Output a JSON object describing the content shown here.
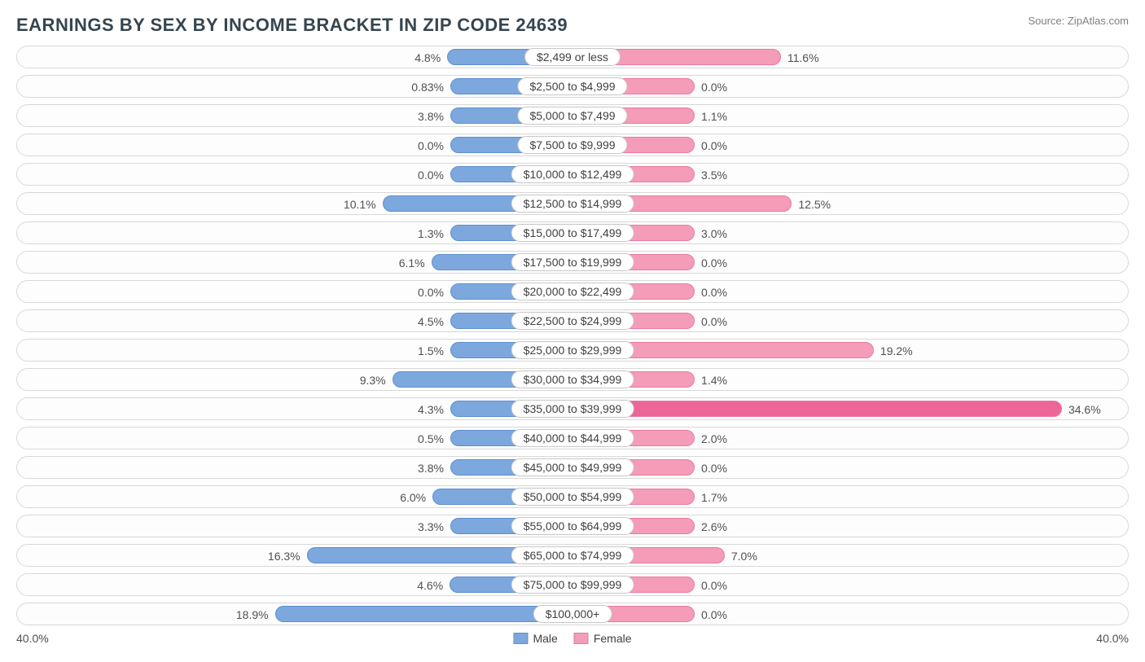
{
  "title": "EARNINGS BY SEX BY INCOME BRACKET IN ZIP CODE 24639",
  "source": "Source: ZipAtlas.com",
  "axis_max_pct": 40.0,
  "axis_label_left": "40.0%",
  "axis_label_right": "40.0%",
  "colors": {
    "male_bar": "#7ca8de",
    "male_bar_border": "#5d8fcf",
    "female_bar": "#f49cb8",
    "female_bar_border": "#ec7aa0",
    "female_bar_max": "#ec6698",
    "row_border": "#d8d8d8",
    "center_border": "#c8c8c8",
    "text": "#404040",
    "title_text": "#36454f",
    "source_text": "#808080",
    "background": "#ffffff"
  },
  "legend": {
    "male": "Male",
    "female": "Female"
  },
  "center_label_half_width_pct": 6.0,
  "min_bar_pct": 5.0,
  "rows": [
    {
      "bracket": "$2,499 or less",
      "male": 4.8,
      "male_label": "4.8%",
      "female": 11.6,
      "female_label": "11.6%"
    },
    {
      "bracket": "$2,500 to $4,999",
      "male": 0.83,
      "male_label": "0.83%",
      "female": 0.0,
      "female_label": "0.0%"
    },
    {
      "bracket": "$5,000 to $7,499",
      "male": 3.8,
      "male_label": "3.8%",
      "female": 1.1,
      "female_label": "1.1%"
    },
    {
      "bracket": "$7,500 to $9,999",
      "male": 0.0,
      "male_label": "0.0%",
      "female": 0.0,
      "female_label": "0.0%"
    },
    {
      "bracket": "$10,000 to $12,499",
      "male": 0.0,
      "male_label": "0.0%",
      "female": 3.5,
      "female_label": "3.5%"
    },
    {
      "bracket": "$12,500 to $14,999",
      "male": 10.1,
      "male_label": "10.1%",
      "female": 12.5,
      "female_label": "12.5%"
    },
    {
      "bracket": "$15,000 to $17,499",
      "male": 1.3,
      "male_label": "1.3%",
      "female": 3.0,
      "female_label": "3.0%"
    },
    {
      "bracket": "$17,500 to $19,999",
      "male": 6.1,
      "male_label": "6.1%",
      "female": 0.0,
      "female_label": "0.0%"
    },
    {
      "bracket": "$20,000 to $22,499",
      "male": 0.0,
      "male_label": "0.0%",
      "female": 0.0,
      "female_label": "0.0%"
    },
    {
      "bracket": "$22,500 to $24,999",
      "male": 4.5,
      "male_label": "4.5%",
      "female": 0.0,
      "female_label": "0.0%"
    },
    {
      "bracket": "$25,000 to $29,999",
      "male": 1.5,
      "male_label": "1.5%",
      "female": 19.2,
      "female_label": "19.2%"
    },
    {
      "bracket": "$30,000 to $34,999",
      "male": 9.3,
      "male_label": "9.3%",
      "female": 1.4,
      "female_label": "1.4%"
    },
    {
      "bracket": "$35,000 to $39,999",
      "male": 4.3,
      "male_label": "4.3%",
      "female": 34.6,
      "female_label": "34.6%",
      "female_is_max": true
    },
    {
      "bracket": "$40,000 to $44,999",
      "male": 0.5,
      "male_label": "0.5%",
      "female": 2.0,
      "female_label": "2.0%"
    },
    {
      "bracket": "$45,000 to $49,999",
      "male": 3.8,
      "male_label": "3.8%",
      "female": 0.0,
      "female_label": "0.0%"
    },
    {
      "bracket": "$50,000 to $54,999",
      "male": 6.0,
      "male_label": "6.0%",
      "female": 1.7,
      "female_label": "1.7%"
    },
    {
      "bracket": "$55,000 to $64,999",
      "male": 3.3,
      "male_label": "3.3%",
      "female": 2.6,
      "female_label": "2.6%"
    },
    {
      "bracket": "$65,000 to $74,999",
      "male": 16.3,
      "male_label": "16.3%",
      "female": 7.0,
      "female_label": "7.0%"
    },
    {
      "bracket": "$75,000 to $99,999",
      "male": 4.6,
      "male_label": "4.6%",
      "female": 0.0,
      "female_label": "0.0%"
    },
    {
      "bracket": "$100,000+",
      "male": 18.9,
      "male_label": "18.9%",
      "female": 0.0,
      "female_label": "0.0%"
    }
  ]
}
